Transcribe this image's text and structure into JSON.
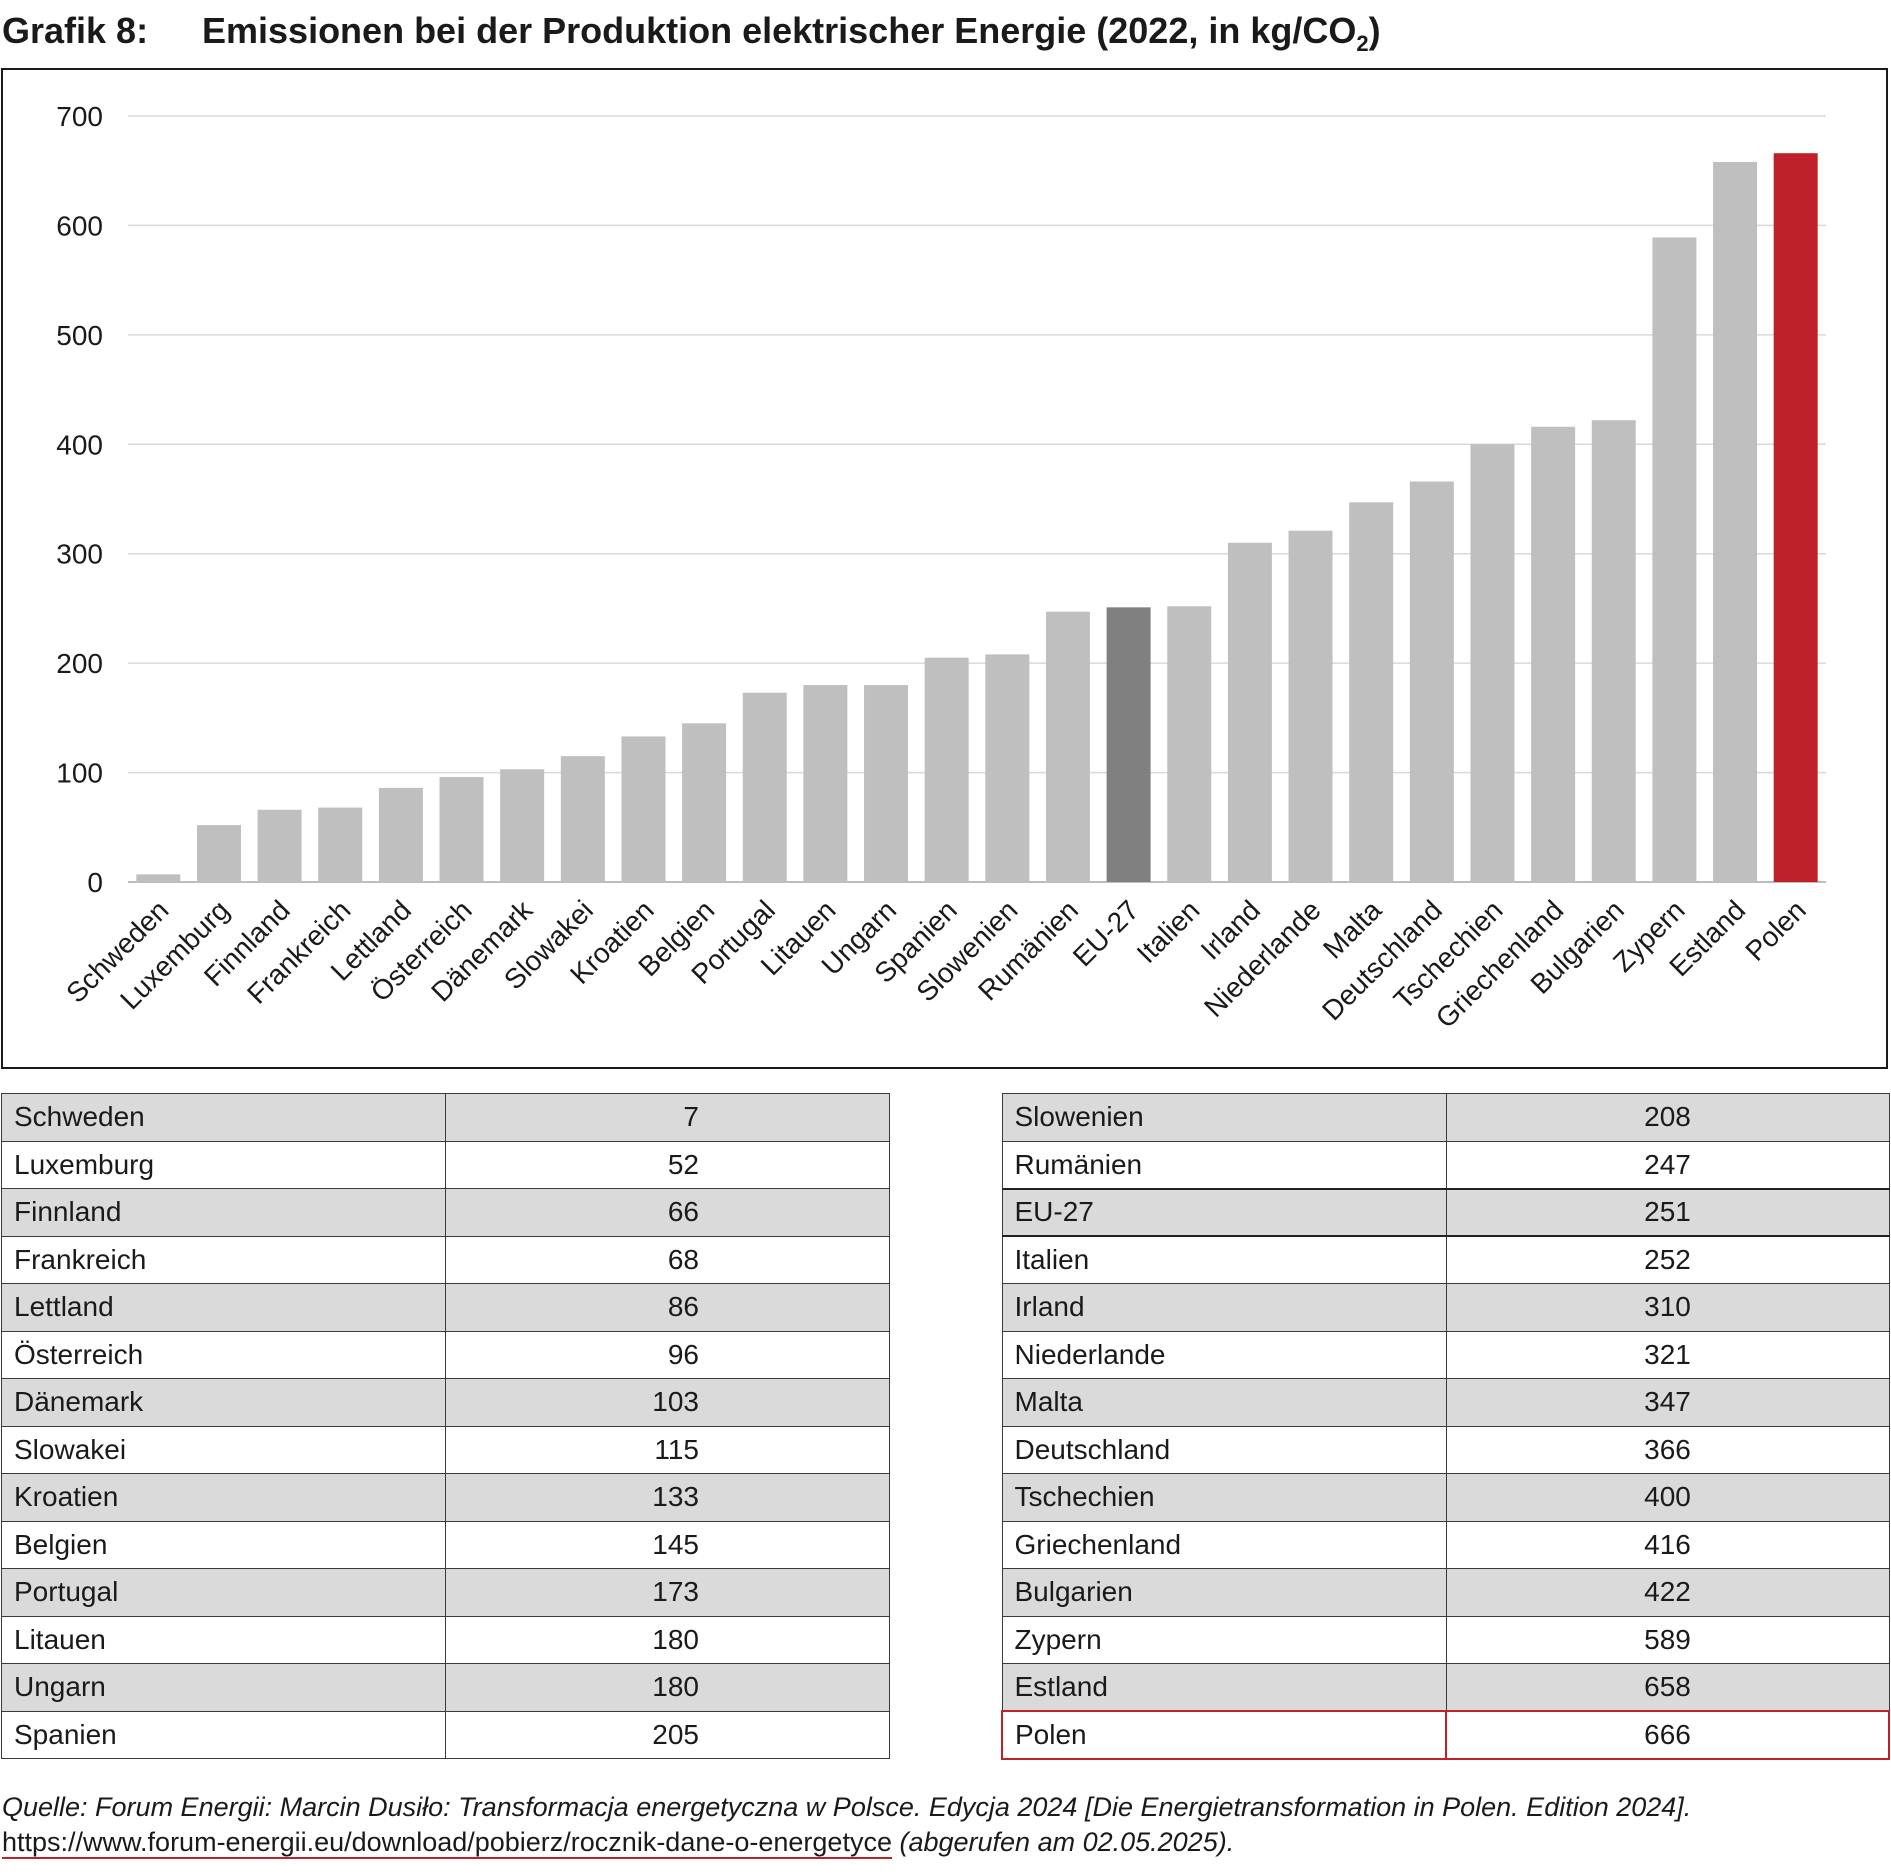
{
  "title": {
    "label": "Grafik 8:",
    "text": "Emissionen bei der Produktion elektrischer Energie (2022, in kg/CO",
    "sub": "2",
    "close": ")"
  },
  "colors": {
    "bar": "#bfbfbf",
    "eu": "#808080",
    "highlight": "#c0202a",
    "grid": "#d9d9d9"
  },
  "chart_data": {
    "type": "bar",
    "title": "Emissionen bei der Produktion elektrischer Energie (2022, in kg/CO2)",
    "xlabel": "",
    "ylabel": "",
    "ylim": [
      0,
      700
    ],
    "yticks": [
      0,
      100,
      200,
      300,
      400,
      500,
      600,
      700
    ],
    "grid": true,
    "categories": [
      "Schweden",
      "Luxemburg",
      "Finnland",
      "Frankreich",
      "Lettland",
      "Österreich",
      "Dänemark",
      "Slowakei",
      "Kroatien",
      "Belgien",
      "Portugal",
      "Litauen",
      "Ungarn",
      "Spanien",
      "Slowenien",
      "Rumänien",
      "EU-27",
      "Italien",
      "Irland",
      "Niederlande",
      "Malta",
      "Deutschland",
      "Tschechien",
      "Griechenland",
      "Bulgarien",
      "Zypern",
      "Estland",
      "Polen"
    ],
    "values": [
      7,
      52,
      66,
      68,
      86,
      96,
      103,
      115,
      133,
      145,
      173,
      180,
      180,
      205,
      208,
      247,
      251,
      252,
      310,
      321,
      347,
      366,
      400,
      416,
      422,
      589,
      658,
      666
    ],
    "highlight": {
      "EU-27": "eu",
      "Polen": "highlight"
    }
  },
  "table_left": [
    {
      "name": "Schweden",
      "value": "7"
    },
    {
      "name": "Luxemburg",
      "value": "52"
    },
    {
      "name": "Finnland",
      "value": "66"
    },
    {
      "name": "Frankreich",
      "value": "68"
    },
    {
      "name": "Lettland",
      "value": "86"
    },
    {
      "name": "Österreich",
      "value": "96"
    },
    {
      "name": "Dänemark",
      "value": "103"
    },
    {
      "name": "Slowakei",
      "value": "115"
    },
    {
      "name": "Kroatien",
      "value": "133"
    },
    {
      "name": "Belgien",
      "value": "145"
    },
    {
      "name": "Portugal",
      "value": "173"
    },
    {
      "name": "Litauen",
      "value": "180"
    },
    {
      "name": "Ungarn",
      "value": "180"
    },
    {
      "name": "Spanien",
      "value": "205"
    }
  ],
  "table_right": [
    {
      "name": "Slowenien",
      "value": "208"
    },
    {
      "name": "Rumänien",
      "value": "247"
    },
    {
      "name": "EU-27",
      "value": "251"
    },
    {
      "name": "Italien",
      "value": "252"
    },
    {
      "name": "Irland",
      "value": "310"
    },
    {
      "name": "Niederlande",
      "value": "321"
    },
    {
      "name": "Malta",
      "value": "347"
    },
    {
      "name": "Deutschland",
      "value": "366"
    },
    {
      "name": "Tschechien",
      "value": "400"
    },
    {
      "name": "Griechenland",
      "value": "416"
    },
    {
      "name": "Bulgarien",
      "value": "422"
    },
    {
      "name": "Zypern",
      "value": "589"
    },
    {
      "name": "Estland",
      "value": "658"
    },
    {
      "name": "Polen",
      "value": "666"
    }
  ],
  "source": {
    "text": "Quelle: Forum Energii: Marcin Dusiło: Transformacja energetyczna w Polsce. Edycja 2024 [Die Energietransformation in Polen. Edition 2024]. ",
    "link": "https://www.forum-energii.eu/download/pobierz/rocznik-dane-o-energetyce",
    "suffix": " (abgerufen am 02.05.2025)."
  }
}
